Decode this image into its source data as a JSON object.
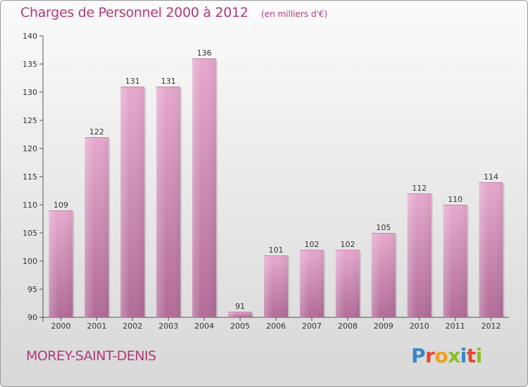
{
  "header": {
    "title": "Charges de Personnel 2000 à 2012",
    "subtitle": "(en milliers d'€)"
  },
  "footer": {
    "town": "MOREY-SAINT-DENIS",
    "logo_text": "Proxiti"
  },
  "colors": {
    "accent": "#b0397a",
    "bar_top": "#e6a9cd",
    "bar_bottom": "#b16c98",
    "logo_letters": [
      "#3a87c8",
      "#e8462c",
      "#f2a01c",
      "#8cbf26",
      "#3a87c8",
      "#e8462c",
      "#8cbf26"
    ]
  },
  "chart_data": {
    "type": "bar",
    "title": "Charges de Personnel 2000 à 2012",
    "subtitle": "(en milliers d'€)",
    "categories": [
      "2000",
      "2001",
      "2002",
      "2003",
      "2004",
      "2005",
      "2006",
      "2007",
      "2008",
      "2009",
      "2010",
      "2011",
      "2012"
    ],
    "values": [
      109,
      122,
      131,
      131,
      136,
      91,
      101,
      102,
      102,
      105,
      112,
      110,
      114
    ],
    "ylim": [
      90,
      140
    ],
    "yticks": [
      90,
      95,
      100,
      105,
      110,
      115,
      120,
      125,
      130,
      135,
      140
    ],
    "grid": false,
    "data_labels": true
  }
}
